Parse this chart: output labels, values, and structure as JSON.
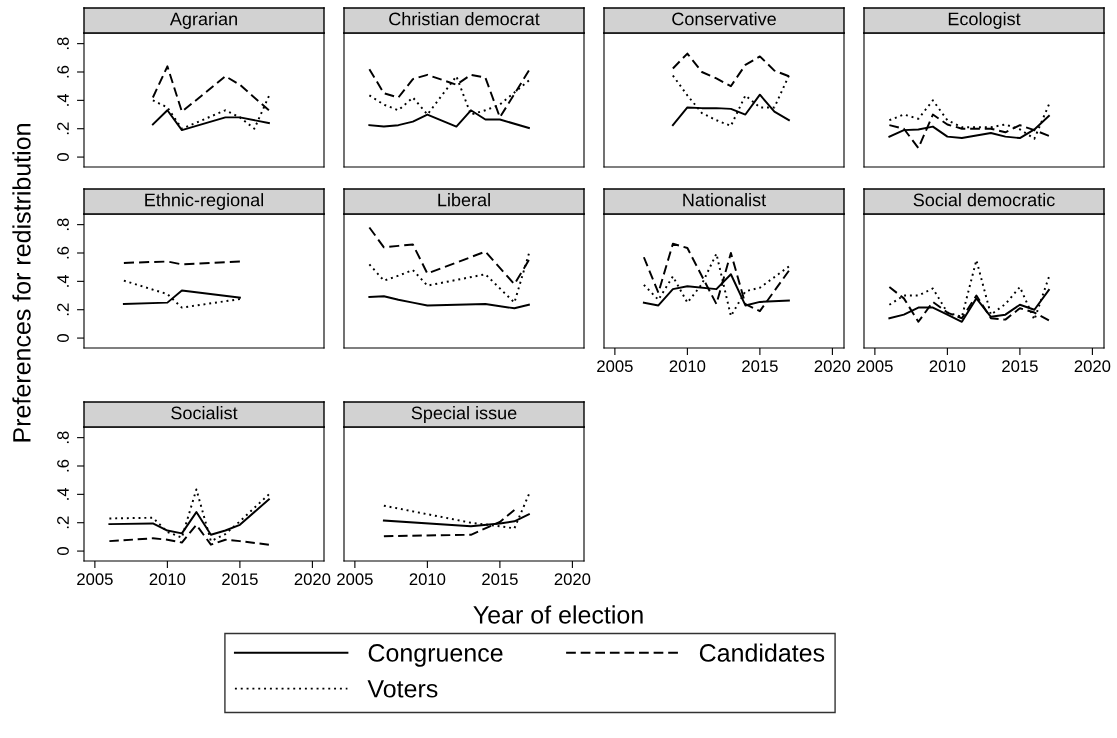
{
  "chart_data": [
    {
      "type": "line",
      "title": "Agrarian",
      "xlabel": "Year of election",
      "ylabel": "Preferences for redistribution",
      "legend": "bottom",
      "tick_labels": "y",
      "xlim": [
        2004.25,
        2020.8
      ],
      "ylim": [
        -0.07,
        0.875
      ],
      "yticks": [
        {
          "value": 0,
          "label": "0"
        },
        {
          "value": 0.2,
          "label": ".2"
        },
        {
          "value": 0.4,
          "label": ".4"
        },
        {
          "value": 0.6,
          "label": ".6"
        },
        {
          "value": 0.8,
          "label": ".8"
        }
      ],
      "series": [
        {
          "name": "Congruence",
          "color": "#000000",
          "line_style": "solid",
          "x": [
            2009,
            2010,
            2011,
            2014,
            2015,
            2017
          ],
          "values": [
            0.23,
            0.33,
            0.19,
            0.28,
            0.28,
            0.24
          ]
        },
        {
          "name": "Candidates",
          "color": "#000000",
          "line_style": "dashed",
          "x": [
            2009,
            2010,
            2011,
            2014,
            2015,
            2017
          ],
          "values": [
            0.42,
            0.64,
            0.32,
            0.57,
            0.51,
            0.33
          ]
        },
        {
          "name": "Voters",
          "color": "#000000",
          "line_style": "dotted",
          "x": [
            2009,
            2010,
            2011,
            2014,
            2015,
            2016,
            2017
          ],
          "values": [
            0.4,
            0.35,
            0.2,
            0.33,
            0.28,
            0.2,
            0.43
          ]
        }
      ]
    },
    {
      "type": "line",
      "title": "Christian democrat",
      "tick_labels": false,
      "xlim": [
        2004.25,
        2020.8
      ],
      "ylim": [
        -0.07,
        0.875
      ],
      "series": [
        {
          "color": "#000000",
          "line_style": "solid",
          "x": [
            2006,
            2007,
            2008,
            2009,
            2010,
            2012,
            2013,
            2014,
            2015,
            2017
          ],
          "values": [
            0.225,
            0.215,
            0.225,
            0.25,
            0.3,
            0.215,
            0.33,
            0.265,
            0.265,
            0.205
          ]
        },
        {
          "color": "#000000",
          "line_style": "dashed",
          "x": [
            2006,
            2007,
            2008,
            2009,
            2010,
            2012,
            2013,
            2014,
            2015,
            2017
          ],
          "values": [
            0.62,
            0.45,
            0.42,
            0.55,
            0.58,
            0.51,
            0.58,
            0.56,
            0.28,
            0.61
          ]
        },
        {
          "color": "#000000",
          "line_style": "dotted",
          "x": [
            2006,
            2007,
            2008,
            2009,
            2010,
            2012,
            2013,
            2014,
            2015,
            2017
          ],
          "values": [
            0.435,
            0.37,
            0.33,
            0.42,
            0.3,
            0.57,
            0.3,
            0.33,
            0.37,
            0.54
          ]
        }
      ]
    },
    {
      "type": "line",
      "title": "Conservative",
      "tick_labels": false,
      "xlim": [
        2004.25,
        2020.8
      ],
      "ylim": [
        -0.07,
        0.875
      ],
      "series": [
        {
          "color": "#000000",
          "line_style": "solid",
          "x": [
            2009,
            2010,
            2011,
            2012,
            2013,
            2014,
            2015,
            2016,
            2017
          ],
          "values": [
            0.225,
            0.35,
            0.345,
            0.345,
            0.34,
            0.3,
            0.44,
            0.32,
            0.26
          ]
        },
        {
          "color": "#000000",
          "line_style": "dashed",
          "x": [
            2009,
            2010,
            2011,
            2012,
            2013,
            2014,
            2015,
            2016,
            2017
          ],
          "values": [
            0.625,
            0.73,
            0.6,
            0.555,
            0.5,
            0.65,
            0.71,
            0.61,
            0.57
          ]
        },
        {
          "color": "#000000",
          "line_style": "dotted",
          "x": [
            2009,
            2010,
            2011,
            2012,
            2013,
            2014,
            2015,
            2016,
            2017
          ],
          "values": [
            0.575,
            0.435,
            0.31,
            0.26,
            0.22,
            0.435,
            0.35,
            0.35,
            0.575
          ]
        }
      ]
    },
    {
      "type": "line",
      "title": "Ecologist",
      "tick_labels": false,
      "xlim": [
        2004.25,
        2020.8
      ],
      "ylim": [
        -0.07,
        0.875
      ],
      "series": [
        {
          "color": "#000000",
          "line_style": "solid",
          "x": [
            2006,
            2007,
            2008,
            2009,
            2010,
            2011,
            2013,
            2014,
            2015,
            2016,
            2017
          ],
          "values": [
            0.144,
            0.19,
            0.195,
            0.215,
            0.144,
            0.134,
            0.17,
            0.144,
            0.134,
            0.195,
            0.29
          ]
        },
        {
          "color": "#000000",
          "line_style": "dashed",
          "x": [
            2006,
            2007,
            2008,
            2009,
            2010,
            2011,
            2013,
            2014,
            2015,
            2016,
            2017
          ],
          "values": [
            0.225,
            0.2,
            0.063,
            0.3,
            0.23,
            0.2,
            0.2,
            0.175,
            0.225,
            0.19,
            0.15
          ]
        },
        {
          "color": "#000000",
          "line_style": "dotted",
          "x": [
            2006,
            2007,
            2008,
            2009,
            2010,
            2011,
            2013,
            2014,
            2015,
            2016,
            2017
          ],
          "values": [
            0.26,
            0.3,
            0.27,
            0.4,
            0.26,
            0.21,
            0.21,
            0.23,
            0.195,
            0.13,
            0.37
          ]
        }
      ]
    },
    {
      "type": "line",
      "title": "Ethnic-regional",
      "tick_labels": "y",
      "xlim": [
        2004.25,
        2020.8
      ],
      "ylim": [
        -0.07,
        0.875
      ],
      "yticks": [
        {
          "value": 0,
          "label": "0"
        },
        {
          "value": 0.2,
          "label": ".2"
        },
        {
          "value": 0.4,
          "label": ".4"
        },
        {
          "value": 0.6,
          "label": ".6"
        },
        {
          "value": 0.8,
          "label": ".8"
        }
      ],
      "series": [
        {
          "color": "#000000",
          "line_style": "solid",
          "x": [
            2007,
            2010,
            2011,
            2015
          ],
          "values": [
            0.24,
            0.25,
            0.335,
            0.285
          ]
        },
        {
          "color": "#000000",
          "line_style": "dashed",
          "x": [
            2007,
            2010,
            2011,
            2015
          ],
          "values": [
            0.53,
            0.54,
            0.52,
            0.54
          ]
        },
        {
          "color": "#000000",
          "line_style": "dotted",
          "x": [
            2007,
            2010,
            2011,
            2015
          ],
          "values": [
            0.405,
            0.31,
            0.215,
            0.275
          ]
        }
      ]
    },
    {
      "type": "line",
      "title": "Liberal",
      "tick_labels": false,
      "xlim": [
        2004.25,
        2020.8
      ],
      "ylim": [
        -0.07,
        0.875
      ],
      "series": [
        {
          "color": "#000000",
          "line_style": "solid",
          "x": [
            2006,
            2007,
            2008,
            2009,
            2010,
            2014,
            2016,
            2017
          ],
          "values": [
            0.29,
            0.295,
            0.27,
            0.25,
            0.23,
            0.24,
            0.21,
            0.235
          ]
        },
        {
          "color": "#000000",
          "line_style": "dashed",
          "x": [
            2006,
            2007,
            2008,
            2009,
            2010,
            2014,
            2016,
            2017
          ],
          "values": [
            0.78,
            0.64,
            0.65,
            0.66,
            0.455,
            0.61,
            0.38,
            0.55
          ]
        },
        {
          "color": "#000000",
          "line_style": "dotted",
          "x": [
            2006,
            2007,
            2008,
            2009,
            2010,
            2014,
            2016,
            2017
          ],
          "values": [
            0.52,
            0.405,
            0.44,
            0.48,
            0.37,
            0.45,
            0.25,
            0.595
          ]
        }
      ]
    },
    {
      "type": "line",
      "title": "Nationalist",
      "tick_labels": "x",
      "xlim": [
        2004.25,
        2020.8
      ],
      "ylim": [
        -0.07,
        0.875
      ],
      "xticks": [
        2005,
        2010,
        2015,
        2020
      ],
      "series": [
        {
          "color": "#000000",
          "line_style": "solid",
          "x": [
            2007,
            2008,
            2009,
            2010,
            2012,
            2013,
            2014,
            2015,
            2017
          ],
          "values": [
            0.25,
            0.23,
            0.345,
            0.365,
            0.345,
            0.45,
            0.23,
            0.255,
            0.265
          ]
        },
        {
          "color": "#000000",
          "line_style": "dashed",
          "x": [
            2007,
            2008,
            2009,
            2010,
            2012,
            2013,
            2014,
            2015,
            2017
          ],
          "values": [
            0.57,
            0.32,
            0.665,
            0.635,
            0.24,
            0.6,
            0.24,
            0.19,
            0.475
          ]
        },
        {
          "color": "#000000",
          "line_style": "dotted",
          "x": [
            2007,
            2008,
            2009,
            2010,
            2011,
            2012,
            2013,
            2014,
            2015,
            2017
          ],
          "values": [
            0.375,
            0.27,
            0.435,
            0.25,
            0.38,
            0.595,
            0.155,
            0.33,
            0.355,
            0.505
          ]
        }
      ]
    },
    {
      "type": "line",
      "title": "Social democratic",
      "tick_labels": "x",
      "xlim": [
        2004.25,
        2020.8
      ],
      "ylim": [
        -0.07,
        0.875
      ],
      "xticks": [
        2005,
        2010,
        2015,
        2020
      ],
      "series": [
        {
          "color": "#000000",
          "line_style": "solid",
          "x": [
            2006,
            2007,
            2008,
            2009,
            2010,
            2011,
            2012,
            2013,
            2014,
            2015,
            2016,
            2017
          ],
          "values": [
            0.14,
            0.165,
            0.215,
            0.215,
            0.165,
            0.115,
            0.28,
            0.15,
            0.165,
            0.235,
            0.2,
            0.34
          ]
        },
        {
          "color": "#000000",
          "line_style": "dashed",
          "x": [
            2006,
            2007,
            2008,
            2009,
            2010,
            2011,
            2012,
            2013,
            2014,
            2015,
            2016,
            2017
          ],
          "values": [
            0.36,
            0.28,
            0.115,
            0.255,
            0.18,
            0.14,
            0.3,
            0.14,
            0.13,
            0.21,
            0.18,
            0.125
          ]
        },
        {
          "color": "#000000",
          "line_style": "dotted",
          "x": [
            2006,
            2007,
            2008,
            2009,
            2010,
            2011,
            2012,
            2013,
            2014,
            2015,
            2016,
            2017
          ],
          "values": [
            0.235,
            0.3,
            0.3,
            0.35,
            0.18,
            0.15,
            0.55,
            0.165,
            0.24,
            0.36,
            0.13,
            0.43
          ]
        }
      ]
    },
    {
      "type": "line",
      "title": "Socialist",
      "xlim": [
        2004.25,
        2020.8
      ],
      "ylim": [
        -0.07,
        0.875
      ],
      "xticks": [
        2005,
        2010,
        2015,
        2020
      ],
      "yticks": [
        {
          "value": 0,
          "label": "0"
        },
        {
          "value": 0.2,
          "label": ".2"
        },
        {
          "value": 0.4,
          "label": ".4"
        },
        {
          "value": 0.6,
          "label": ".6"
        },
        {
          "value": 0.8,
          "label": ".8"
        }
      ],
      "series": [
        {
          "color": "#000000",
          "line_style": "solid",
          "x": [
            2006,
            2009,
            2010,
            2011,
            2012,
            2013,
            2014,
            2015,
            2017
          ],
          "values": [
            0.19,
            0.195,
            0.145,
            0.125,
            0.275,
            0.115,
            0.145,
            0.185,
            0.365
          ]
        },
        {
          "color": "#000000",
          "line_style": "dashed",
          "x": [
            2006,
            2009,
            2010,
            2011,
            2012,
            2013,
            2014,
            2015,
            2017
          ],
          "values": [
            0.07,
            0.09,
            0.08,
            0.06,
            0.185,
            0.045,
            0.08,
            0.07,
            0.045
          ]
        },
        {
          "color": "#000000",
          "line_style": "dotted",
          "x": [
            2006,
            2009,
            2010,
            2011,
            2012,
            2013,
            2014,
            2015,
            2017
          ],
          "values": [
            0.23,
            0.235,
            0.135,
            0.095,
            0.435,
            0.07,
            0.12,
            0.21,
            0.4
          ]
        }
      ]
    },
    {
      "type": "line",
      "title": "Special issue",
      "tick_labels": "x",
      "xlim": [
        2004.25,
        2020.8
      ],
      "ylim": [
        -0.07,
        0.875
      ],
      "xticks": [
        2005,
        2010,
        2015,
        2020
      ],
      "series": [
        {
          "color": "#000000",
          "line_style": "solid",
          "x": [
            2007,
            2013,
            2015,
            2016,
            2017
          ],
          "values": [
            0.215,
            0.175,
            0.195,
            0.21,
            0.26
          ]
        },
        {
          "color": "#000000",
          "line_style": "dashed",
          "x": [
            2007,
            2013,
            2015,
            2016
          ],
          "values": [
            0.105,
            0.115,
            0.205,
            0.29
          ]
        },
        {
          "color": "#000000",
          "line_style": "dotted",
          "x": [
            2007,
            2013,
            2015,
            2016,
            2017
          ],
          "values": [
            0.32,
            0.2,
            0.175,
            0.16,
            0.4
          ]
        }
      ]
    }
  ]
}
